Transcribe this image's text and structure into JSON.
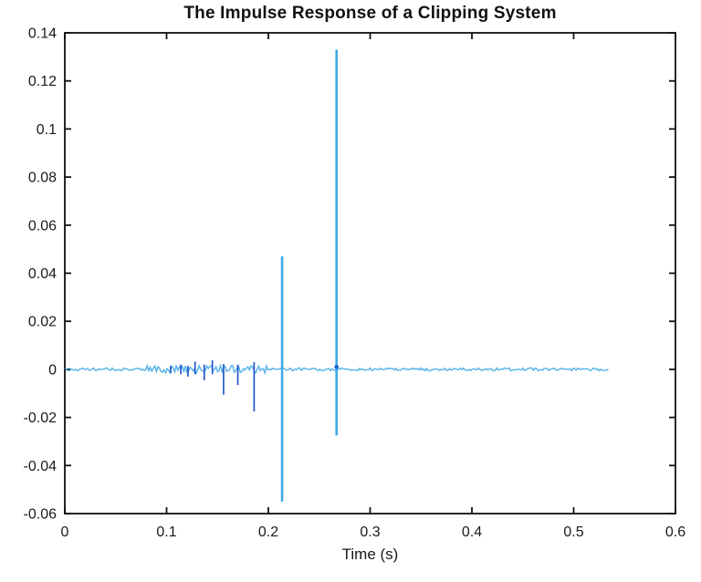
{
  "chart_data": {
    "type": "line",
    "title": "The Impulse Response of a Clipping System",
    "xlabel": "Time (s)",
    "ylabel": "",
    "xlim": [
      0,
      0.6
    ],
    "ylim": [
      -0.06,
      0.14
    ],
    "xtick_values": [
      0,
      0.1,
      0.2,
      0.3,
      0.4,
      0.5,
      0.6
    ],
    "xtick_labels": [
      "0",
      "0.1",
      "0.2",
      "0.3",
      "0.4",
      "0.5",
      "0.6"
    ],
    "ytick_values": [
      -0.06,
      -0.04,
      -0.02,
      0,
      0.02,
      0.04,
      0.06,
      0.08,
      0.1,
      0.12,
      0.14
    ],
    "ytick_labels": [
      "-0.06",
      "-0.04",
      "-0.02",
      "0",
      "0.02",
      "0.04",
      "0.06",
      "0.08",
      "0.1",
      "0.12",
      "0.14"
    ],
    "grid": false,
    "legend": null,
    "colors": {
      "axis": "#111111",
      "baseline_line": "#54b2e8",
      "minor_spike": "#2256c9",
      "major_spike": "#3fa9e6",
      "marker": "#1b66c9"
    },
    "series": [
      {
        "name": "impulse response",
        "baseline": {
          "t_start": 0,
          "t_end": 0.534,
          "value": 0,
          "noise_amp_default": 0.0006,
          "noise_regions": [
            {
              "from": 0.08,
              "to": 0.2,
              "amp": 0.0016
            }
          ]
        },
        "spikes": [
          {
            "t": 0.104,
            "peak": 0.0015,
            "trough": -0.0015,
            "major": false
          },
          {
            "t": 0.114,
            "peak": 0.002,
            "trough": -0.002,
            "major": false
          },
          {
            "t": 0.121,
            "peak": 0.0015,
            "trough": -0.003,
            "major": false
          },
          {
            "t": 0.128,
            "peak": 0.0032,
            "trough": -0.002,
            "major": false
          },
          {
            "t": 0.137,
            "peak": 0.002,
            "trough": -0.0045,
            "major": false
          },
          {
            "t": 0.145,
            "peak": 0.0038,
            "trough": -0.002,
            "major": false
          },
          {
            "t": 0.156,
            "peak": 0.0022,
            "trough": -0.0105,
            "major": false
          },
          {
            "t": 0.17,
            "peak": 0.002,
            "trough": -0.0065,
            "major": false
          },
          {
            "t": 0.186,
            "peak": 0.003,
            "trough": -0.0175,
            "major": false
          },
          {
            "t": 0.2135,
            "peak": 0.047,
            "trough": -0.055,
            "major": true
          },
          {
            "t": 0.267,
            "peak": 0.133,
            "trough": -0.0275,
            "major": true
          }
        ],
        "marker": {
          "t": 0.267,
          "value": 0.001
        }
      }
    ]
  }
}
